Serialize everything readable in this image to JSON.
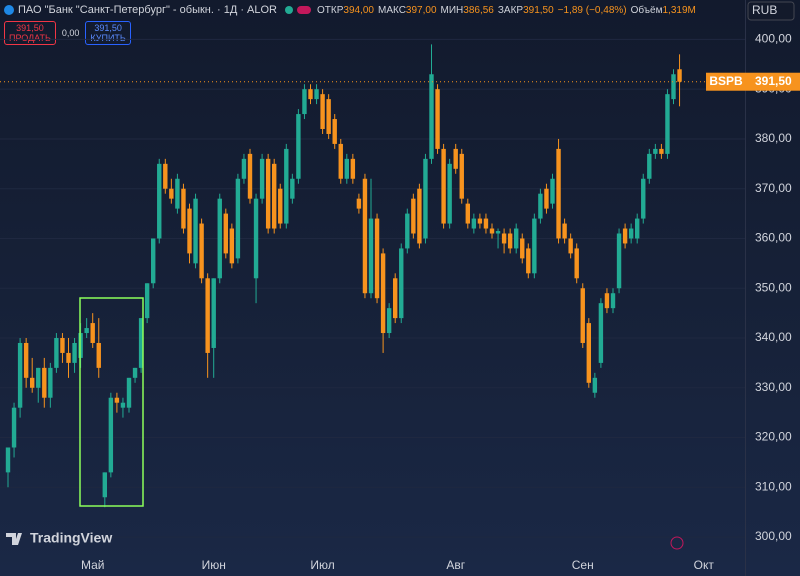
{
  "chart_data": {
    "type": "candlestick",
    "title": "ПАО \"Банк \"Санкт-Петербург\" - обыкн. · 1Д · ALOR",
    "stats": [
      {
        "label": "ОТКР",
        "value": "394,00"
      },
      {
        "label": "МАКС",
        "value": "397,00"
      },
      {
        "label": "МИН",
        "value": "386,56"
      },
      {
        "label": "ЗАКР",
        "value": "391,50"
      },
      {
        "label": "",
        "value": "−1,89 (−0,48%)"
      },
      {
        "label": "Объём",
        "value": "1,319M"
      }
    ],
    "trade": {
      "sell_price": "391,50",
      "sell_label": "ПРОДАТЬ",
      "spread": "0,00",
      "buy_price": "391,50",
      "buy_label": "КУПИТЬ"
    },
    "currency": "RUB",
    "last": {
      "ticker": "BSPB",
      "label": "391,50"
    },
    "logo": "TradingView",
    "up_color": "#22ab94",
    "down_color": "#f7931e",
    "categories": [
      null,
      null,
      null,
      null,
      null,
      null,
      null,
      null,
      null,
      null,
      null,
      null,
      null,
      null,
      "Май",
      null,
      null,
      null,
      null,
      null,
      null,
      null,
      null,
      null,
      null,
      null,
      null,
      null,
      null,
      null,
      null,
      null,
      null,
      null,
      "Июн",
      null,
      null,
      null,
      null,
      null,
      null,
      null,
      null,
      null,
      null,
      null,
      null,
      null,
      null,
      null,
      null,
      null,
      "Июл",
      null,
      null,
      null,
      null,
      null,
      null,
      null,
      null,
      null,
      null,
      null,
      null,
      null,
      null,
      null,
      null,
      null,
      null,
      null,
      null,
      null,
      "Авг",
      null,
      null,
      null,
      null,
      null,
      null,
      null,
      null,
      null,
      null,
      null,
      null,
      null,
      null,
      null,
      null,
      null,
      null,
      null,
      null,
      "Сен",
      null,
      null,
      null,
      null,
      null,
      null,
      null,
      null,
      null,
      null,
      null,
      null,
      null,
      null,
      null,
      null,
      null,
      null,
      null,
      "Окт"
    ],
    "open": [
      313,
      318,
      326,
      339,
      332,
      330,
      334,
      328,
      334,
      340,
      337,
      335,
      336,
      341,
      343,
      339,
      308,
      313,
      328,
      326,
      326,
      332,
      334,
      344,
      351,
      360,
      375,
      370,
      366,
      370,
      366,
      355,
      363,
      352,
      338,
      352,
      365,
      362,
      356,
      372,
      377,
      352,
      368,
      376,
      375,
      370,
      363,
      368,
      372,
      385,
      390,
      388,
      389,
      388,
      384,
      379,
      372,
      376,
      368,
      372,
      349,
      364,
      357,
      341,
      352,
      344,
      358,
      368,
      370,
      360,
      376,
      390,
      378,
      363,
      378,
      377,
      367,
      362,
      364,
      364,
      362,
      361,
      361,
      361,
      358,
      360,
      358,
      353,
      364,
      370,
      367,
      378,
      363,
      360,
      358,
      350,
      343,
      329,
      335,
      349,
      346,
      350,
      362,
      360,
      360,
      364,
      372,
      377,
      378,
      377,
      388,
      394,
      null,
      null,
      null,
      null
    ],
    "high": [
      318,
      327,
      340,
      340,
      336,
      334,
      336,
      335,
      341,
      341,
      340,
      340,
      343,
      344,
      345,
      344,
      313,
      329,
      329,
      328,
      332,
      334,
      344,
      351,
      360,
      376,
      376,
      372,
      373,
      371,
      367,
      369,
      364,
      353,
      352,
      369,
      366,
      363,
      373,
      377,
      378,
      369,
      377,
      377,
      376,
      371,
      379,
      373,
      386,
      391,
      391,
      391,
      390,
      389,
      385,
      380,
      377,
      377,
      369,
      373,
      372,
      365,
      358,
      347,
      353,
      359,
      366,
      369,
      371,
      377,
      399,
      391,
      379,
      376,
      379,
      378,
      368,
      365,
      365,
      365,
      363,
      362,
      362,
      362,
      363,
      361,
      359,
      365,
      370,
      371,
      373,
      380,
      364,
      361,
      359,
      351,
      344,
      333,
      348,
      350,
      350,
      362,
      363,
      363,
      365,
      373,
      378,
      379,
      379,
      390,
      394,
      397,
      null,
      null,
      null,
      null
    ],
    "low": [
      310,
      316,
      324,
      330,
      329,
      327,
      326,
      326,
      333,
      335,
      332,
      333,
      334,
      340,
      338,
      332,
      306,
      312,
      325,
      324,
      325,
      331,
      333,
      343,
      350,
      359,
      369,
      367,
      365,
      361,
      355,
      354,
      351,
      332,
      332,
      351,
      356,
      354,
      355,
      371,
      367,
      347,
      367,
      361,
      361,
      362,
      362,
      367,
      371,
      384,
      387,
      387,
      381,
      380,
      378,
      371,
      371,
      371,
      365,
      348,
      348,
      347,
      337,
      340,
      343,
      343,
      357,
      360,
      358,
      359,
      375,
      377,
      362,
      362,
      373,
      367,
      362,
      361,
      362,
      361,
      360,
      358,
      357,
      357,
      357,
      355,
      352,
      352,
      363,
      365,
      366,
      359,
      359,
      356,
      351,
      338,
      330,
      328,
      334,
      345,
      345,
      349,
      358,
      359,
      359,
      363,
      371,
      376,
      376,
      376,
      387,
      386.56,
      null,
      null,
      null,
      null
    ],
    "close": [
      318,
      326,
      339,
      332,
      330,
      334,
      328,
      334,
      340,
      337,
      335,
      339,
      341,
      342,
      339,
      334,
      313,
      328,
      327,
      327,
      332,
      334,
      344,
      351,
      360,
      375,
      370,
      368,
      372,
      362,
      357,
      368,
      352,
      337,
      352,
      368,
      357,
      355,
      372,
      376,
      368,
      368,
      376,
      362,
      362,
      363,
      378,
      372,
      385,
      390,
      388,
      390,
      382,
      381,
      379,
      372,
      376,
      372,
      366,
      349,
      364,
      348,
      341,
      346,
      344,
      358,
      365,
      361,
      359,
      376,
      393,
      378,
      363,
      375,
      374,
      368,
      363,
      364,
      363,
      362,
      361,
      361.5,
      359,
      358,
      362,
      356,
      353,
      364,
      369,
      366,
      372,
      360,
      360,
      357,
      352,
      339,
      331,
      332,
      347,
      346,
      349,
      361,
      359,
      362,
      364,
      372,
      377,
      378,
      377,
      389,
      393,
      391.5,
      null,
      null,
      null,
      null
    ],
    "ylim": [
      297,
      403.5
    ],
    "yticks": [
      {
        "value": 300,
        "label": "300,00"
      },
      {
        "value": 310,
        "label": "310,00"
      },
      {
        "value": 320,
        "label": "320,00"
      },
      {
        "value": 330,
        "label": "330,00"
      },
      {
        "value": 340,
        "label": "340,00"
      },
      {
        "value": 350,
        "label": "350,00"
      },
      {
        "value": 360,
        "label": "360,00"
      },
      {
        "value": 370,
        "label": "370,00"
      },
      {
        "value": 380,
        "label": "380,00"
      },
      {
        "value": 390,
        "label": "390,00"
      },
      {
        "value": 400,
        "label": "400,00"
      }
    ],
    "grid": true
  }
}
